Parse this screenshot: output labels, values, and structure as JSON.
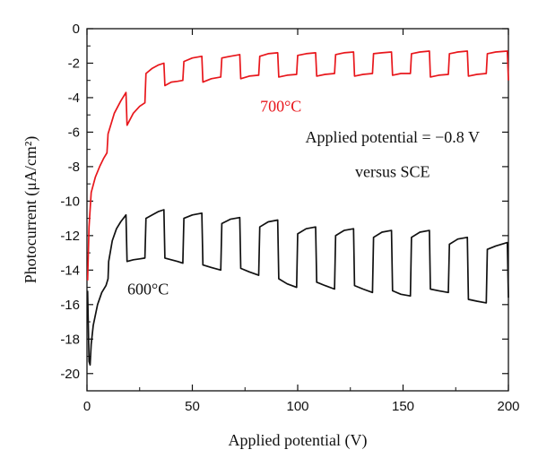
{
  "chart_data": {
    "type": "line",
    "title": "",
    "xlabel": "Applied potential (V)",
    "ylabel": "Photocurrent (μA/cm²)",
    "xlim": [
      0,
      200
    ],
    "ylim": [
      -21,
      0
    ],
    "x_ticks": [
      0,
      50,
      100,
      150,
      200
    ],
    "y_ticks": [
      0,
      -2,
      -4,
      -6,
      -8,
      -10,
      -12,
      -14,
      -16,
      -18,
      -20
    ],
    "grid": false,
    "annotations": [
      {
        "text": "Applied potential = −0.8 V",
        "x": 145,
        "y": -6.6
      },
      {
        "text": "versus SCE",
        "x": 145,
        "y": -8.6
      }
    ],
    "series": [
      {
        "name": "700°C",
        "color": "#e8171c",
        "label_at": [
          92,
          -4.8
        ],
        "points": [
          [
            0.3,
            -14.6
          ],
          [
            1,
            -11.5
          ],
          [
            2,
            -9.5
          ],
          [
            4,
            -8.6
          ],
          [
            6,
            -8.0
          ],
          [
            8,
            -7.5
          ],
          [
            9.5,
            -7.2
          ],
          [
            10,
            -6.1
          ],
          [
            13,
            -4.9
          ],
          [
            16,
            -4.2
          ],
          [
            18.5,
            -3.7
          ],
          [
            19,
            -5.6
          ],
          [
            22,
            -4.9
          ],
          [
            25,
            -4.5
          ],
          [
            27.5,
            -4.3
          ],
          [
            28,
            -2.6
          ],
          [
            31,
            -2.3
          ],
          [
            34,
            -2.1
          ],
          [
            36.5,
            -2.0
          ],
          [
            37,
            -3.3
          ],
          [
            40,
            -3.1
          ],
          [
            43,
            -3.05
          ],
          [
            45.5,
            -3.0
          ],
          [
            46,
            -1.9
          ],
          [
            50,
            -1.7
          ],
          [
            54.5,
            -1.6
          ],
          [
            55,
            -3.1
          ],
          [
            59,
            -2.9
          ],
          [
            63.5,
            -2.8
          ],
          [
            64,
            -1.7
          ],
          [
            68,
            -1.6
          ],
          [
            72.5,
            -1.5
          ],
          [
            73,
            -2.9
          ],
          [
            77,
            -2.75
          ],
          [
            81.5,
            -2.7
          ],
          [
            82,
            -1.6
          ],
          [
            86,
            -1.45
          ],
          [
            90.5,
            -1.4
          ],
          [
            91,
            -2.8
          ],
          [
            95,
            -2.7
          ],
          [
            99.5,
            -2.65
          ],
          [
            100,
            -1.55
          ],
          [
            104,
            -1.45
          ],
          [
            108.5,
            -1.4
          ],
          [
            109,
            -2.75
          ],
          [
            113,
            -2.65
          ],
          [
            117.5,
            -2.6
          ],
          [
            118,
            -1.5
          ],
          [
            122,
            -1.4
          ],
          [
            126.5,
            -1.35
          ],
          [
            127,
            -2.75
          ],
          [
            131,
            -2.65
          ],
          [
            135.5,
            -2.6
          ],
          [
            136,
            -1.45
          ],
          [
            140,
            -1.4
          ],
          [
            144.5,
            -1.35
          ],
          [
            145,
            -2.7
          ],
          [
            149,
            -2.6
          ],
          [
            153.5,
            -2.6
          ],
          [
            154,
            -1.45
          ],
          [
            158,
            -1.35
          ],
          [
            162.5,
            -1.3
          ],
          [
            163,
            -2.8
          ],
          [
            167,
            -2.7
          ],
          [
            171.5,
            -2.65
          ],
          [
            172,
            -1.45
          ],
          [
            176,
            -1.35
          ],
          [
            180.5,
            -1.3
          ],
          [
            181,
            -2.75
          ],
          [
            185,
            -2.65
          ],
          [
            189.5,
            -2.6
          ],
          [
            190,
            -1.45
          ],
          [
            194,
            -1.35
          ],
          [
            199.5,
            -1.3
          ],
          [
            200,
            -3.0
          ]
        ]
      },
      {
        "name": "600°C",
        "color": "#111111",
        "label_at": [
          29,
          -15.4
        ],
        "points": [
          [
            0.3,
            -15.2
          ],
          [
            1,
            -19.3
          ],
          [
            1.5,
            -19.5
          ],
          [
            2,
            -18.3
          ],
          [
            3,
            -17.2
          ],
          [
            5,
            -16.0
          ],
          [
            7,
            -15.3
          ],
          [
            9,
            -14.9
          ],
          [
            10,
            -14.5
          ],
          [
            10.3,
            -13.5
          ],
          [
            12,
            -12.3
          ],
          [
            14,
            -11.6
          ],
          [
            16,
            -11.2
          ],
          [
            18.5,
            -10.8
          ],
          [
            19,
            -13.5
          ],
          [
            22,
            -13.4
          ],
          [
            25,
            -13.35
          ],
          [
            27.5,
            -13.3
          ],
          [
            28,
            -11.0
          ],
          [
            31,
            -10.8
          ],
          [
            34,
            -10.6
          ],
          [
            36.5,
            -10.5
          ],
          [
            37,
            -13.3
          ],
          [
            40,
            -13.4
          ],
          [
            43,
            -13.5
          ],
          [
            45.5,
            -13.6
          ],
          [
            46,
            -11.0
          ],
          [
            50,
            -10.8
          ],
          [
            54.5,
            -10.7
          ],
          [
            55,
            -13.7
          ],
          [
            59,
            -13.85
          ],
          [
            63.5,
            -14.0
          ],
          [
            64,
            -11.3
          ],
          [
            68,
            -11.05
          ],
          [
            72.5,
            -10.95
          ],
          [
            73,
            -13.9
          ],
          [
            77,
            -14.1
          ],
          [
            81.5,
            -14.3
          ],
          [
            82,
            -11.5
          ],
          [
            86,
            -11.2
          ],
          [
            90.5,
            -11.1
          ],
          [
            91,
            -14.5
          ],
          [
            95,
            -14.8
          ],
          [
            99.5,
            -15.0
          ],
          [
            100,
            -11.9
          ],
          [
            104,
            -11.6
          ],
          [
            108.5,
            -11.5
          ],
          [
            109,
            -14.7
          ],
          [
            113,
            -14.9
          ],
          [
            117.5,
            -15.1
          ],
          [
            118,
            -12.0
          ],
          [
            122,
            -11.7
          ],
          [
            126.5,
            -11.6
          ],
          [
            127,
            -14.9
          ],
          [
            131,
            -15.1
          ],
          [
            135.5,
            -15.3
          ],
          [
            136,
            -12.1
          ],
          [
            140,
            -11.8
          ],
          [
            144.5,
            -11.7
          ],
          [
            145,
            -15.2
          ],
          [
            149,
            -15.4
          ],
          [
            153.5,
            -15.5
          ],
          [
            154,
            -12.1
          ],
          [
            158,
            -11.8
          ],
          [
            162.5,
            -11.7
          ],
          [
            163,
            -15.1
          ],
          [
            167,
            -15.2
          ],
          [
            171.5,
            -15.3
          ],
          [
            172,
            -12.5
          ],
          [
            176,
            -12.2
          ],
          [
            180.5,
            -12.1
          ],
          [
            181,
            -15.7
          ],
          [
            185,
            -15.8
          ],
          [
            189.5,
            -15.9
          ],
          [
            190,
            -12.8
          ],
          [
            194,
            -12.6
          ],
          [
            199.5,
            -12.4
          ],
          [
            200,
            -15.6
          ]
        ]
      }
    ]
  }
}
